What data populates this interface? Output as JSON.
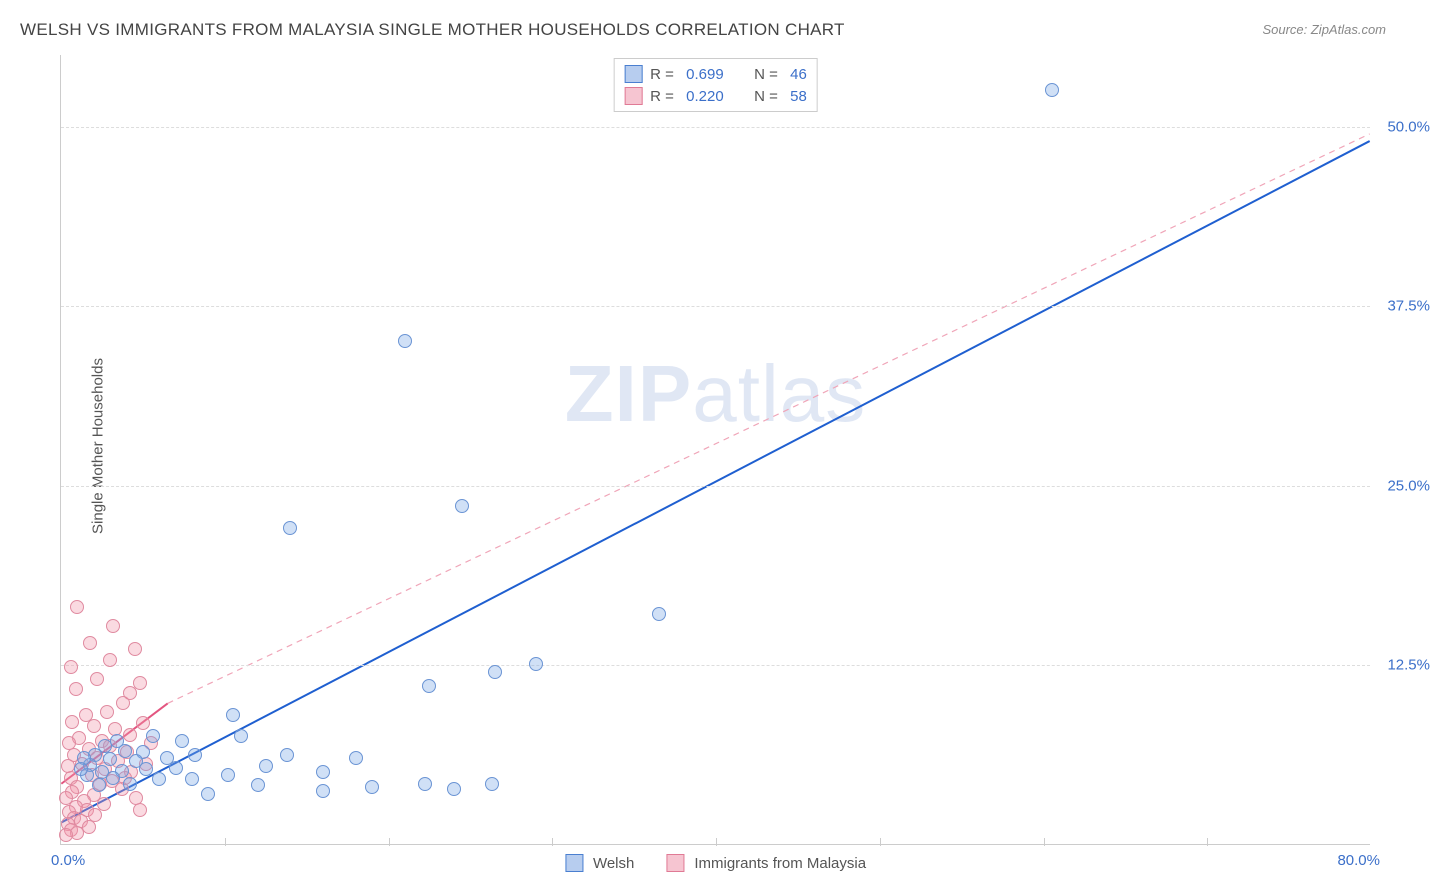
{
  "title": "WELSH VS IMMIGRANTS FROM MALAYSIA SINGLE MOTHER HOUSEHOLDS CORRELATION CHART",
  "source": "Source: ZipAtlas.com",
  "watermark_a": "ZIP",
  "watermark_b": "atlas",
  "ylabel": "Single Mother Households",
  "chart": {
    "type": "scatter",
    "xlim": [
      0,
      80
    ],
    "ylim": [
      0,
      55
    ],
    "x_origin_label": "0.0%",
    "x_max_label": "80.0%",
    "yticks": [
      {
        "v": 12.5,
        "label": "12.5%"
      },
      {
        "v": 25.0,
        "label": "25.0%"
      },
      {
        "v": 37.5,
        "label": "37.5%"
      },
      {
        "v": 50.0,
        "label": "50.0%"
      }
    ],
    "xtick_positions": [
      10,
      20,
      30,
      40,
      50,
      60,
      70
    ],
    "background_color": "#ffffff",
    "grid_color": "#dddddd",
    "marker_radius": 7,
    "marker_stroke_width": 1.5,
    "series": [
      {
        "name": "Welsh",
        "fill": "rgba(120, 165, 230, 0.35)",
        "stroke": "#6a94d4",
        "swatch_fill": "#b7cdef",
        "swatch_border": "#4a7fd0",
        "legend_label": "Welsh",
        "R": "0.699",
        "N": "46",
        "trend": {
          "x1": 0,
          "y1": 1.5,
          "x2": 80,
          "y2": 49,
          "color": "#1f5fd0",
          "width": 2,
          "dash": ""
        },
        "points": [
          [
            60.5,
            52.5
          ],
          [
            21,
            35
          ],
          [
            14,
            22
          ],
          [
            24.5,
            23.5
          ],
          [
            22.5,
            11
          ],
          [
            26.5,
            12
          ],
          [
            29,
            12.5
          ],
          [
            36.5,
            16
          ],
          [
            22.2,
            4.2
          ],
          [
            24,
            3.8
          ],
          [
            26.3,
            4.2
          ],
          [
            18,
            6
          ],
          [
            16,
            5
          ],
          [
            12.5,
            5.4
          ],
          [
            13.8,
            6.2
          ],
          [
            11,
            7.5
          ],
          [
            10.2,
            4.8
          ],
          [
            9,
            3.5
          ],
          [
            8.2,
            6.2
          ],
          [
            8,
            4.5
          ],
          [
            7.4,
            7.2
          ],
          [
            7,
            5.3
          ],
          [
            6.5,
            6
          ],
          [
            6,
            4.5
          ],
          [
            5.6,
            7.5
          ],
          [
            5.2,
            5.2
          ],
          [
            5,
            6.4
          ],
          [
            4.6,
            5.8
          ],
          [
            4.2,
            4.2
          ],
          [
            3.9,
            6.5
          ],
          [
            3.7,
            5.1
          ],
          [
            3.4,
            7.2
          ],
          [
            3.2,
            4.6
          ],
          [
            3.0,
            5.9
          ],
          [
            2.7,
            6.8
          ],
          [
            2.5,
            5.0
          ],
          [
            2.3,
            4.1
          ],
          [
            2.1,
            6.2
          ],
          [
            1.8,
            5.5
          ],
          [
            1.6,
            4.8
          ],
          [
            1.4,
            6.0
          ],
          [
            1.2,
            5.2
          ],
          [
            16,
            3.7
          ],
          [
            19,
            4
          ],
          [
            10.5,
            9
          ],
          [
            12,
            4.1
          ]
        ]
      },
      {
        "name": "Immigrants from Malaysia",
        "fill": "rgba(240, 150, 170, 0.35)",
        "stroke": "#e08aa0",
        "swatch_fill": "#f6c5d1",
        "swatch_border": "#e07a95",
        "legend_label": "Immigrants from Malaysia",
        "R": "0.220",
        "N": "58",
        "trend_solid": {
          "x1": 0,
          "y1": 4.2,
          "x2": 6.5,
          "y2": 9.8,
          "color": "#e35580",
          "width": 2
        },
        "trend_dashed": {
          "x1": 6.5,
          "y1": 9.8,
          "x2": 80,
          "y2": 49.5,
          "color": "#f0a5b8",
          "width": 1.2,
          "dash": "6 5"
        },
        "points": [
          [
            1.0,
            16.5
          ],
          [
            3.2,
            15.2
          ],
          [
            1.8,
            14
          ],
          [
            3.0,
            12.8
          ],
          [
            0.6,
            12.3
          ],
          [
            2.2,
            11.5
          ],
          [
            0.9,
            10.8
          ],
          [
            4.5,
            13.6
          ],
          [
            4.8,
            11.2
          ],
          [
            3.8,
            9.8
          ],
          [
            2.8,
            9.2
          ],
          [
            1.5,
            9.0
          ],
          [
            0.7,
            8.5
          ],
          [
            2.0,
            8.2
          ],
          [
            3.3,
            8.0
          ],
          [
            4.2,
            7.6
          ],
          [
            1.1,
            7.4
          ],
          [
            2.5,
            7.2
          ],
          [
            0.5,
            7.0
          ],
          [
            3.0,
            6.8
          ],
          [
            1.7,
            6.6
          ],
          [
            4.0,
            6.4
          ],
          [
            0.8,
            6.2
          ],
          [
            2.2,
            6.0
          ],
          [
            3.5,
            5.8
          ],
          [
            1.3,
            5.6
          ],
          [
            0.4,
            5.4
          ],
          [
            2.7,
            5.2
          ],
          [
            4.3,
            5.0
          ],
          [
            1.9,
            4.8
          ],
          [
            0.6,
            4.6
          ],
          [
            3.1,
            4.4
          ],
          [
            2.4,
            4.2
          ],
          [
            1.0,
            4.0
          ],
          [
            3.7,
            3.8
          ],
          [
            0.7,
            3.6
          ],
          [
            2.0,
            3.4
          ],
          [
            0.3,
            3.2
          ],
          [
            1.4,
            3.0
          ],
          [
            2.6,
            2.8
          ],
          [
            0.9,
            2.6
          ],
          [
            1.6,
            2.4
          ],
          [
            0.5,
            2.2
          ],
          [
            2.1,
            2.0
          ],
          [
            0.8,
            1.8
          ],
          [
            1.2,
            1.6
          ],
          [
            0.4,
            1.4
          ],
          [
            1.7,
            1.2
          ],
          [
            0.6,
            1.0
          ],
          [
            1.0,
            0.8
          ],
          [
            0.3,
            0.6
          ],
          [
            4.2,
            10.5
          ],
          [
            5.0,
            8.4
          ],
          [
            5.5,
            7.0
          ],
          [
            3.9,
            4.6
          ],
          [
            4.6,
            3.2
          ],
          [
            5.2,
            5.6
          ],
          [
            4.8,
            2.4
          ]
        ]
      }
    ]
  },
  "legend_top_labels": {
    "R": "R =",
    "N": "N ="
  }
}
